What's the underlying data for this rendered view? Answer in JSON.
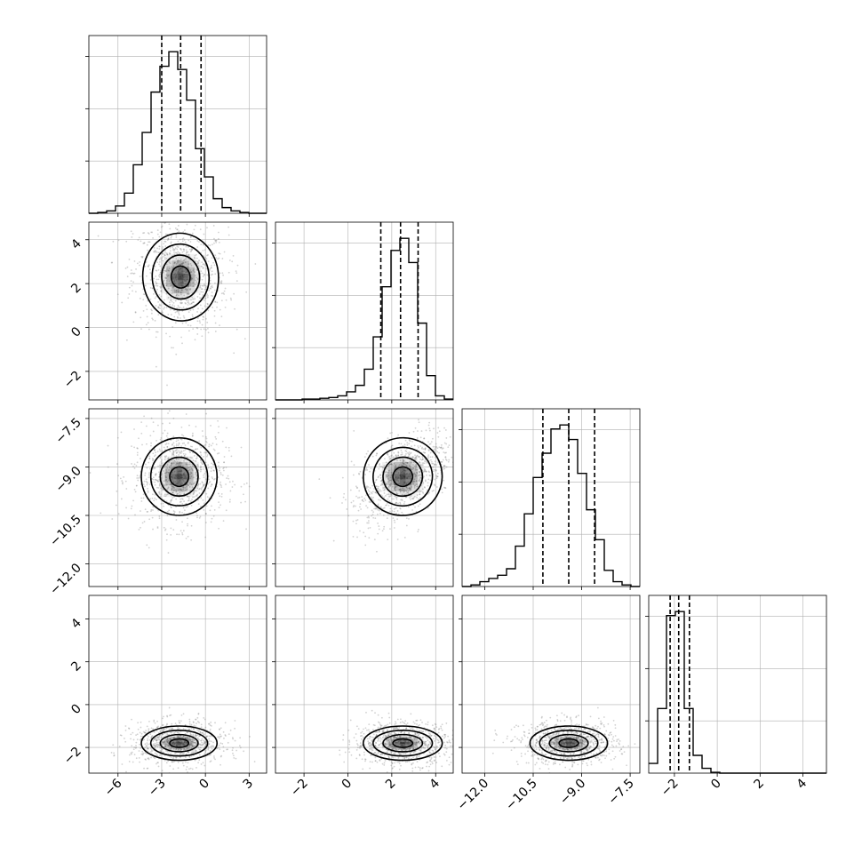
{
  "chart_data": {
    "type": "corner",
    "grid": true,
    "parameters": [
      {
        "ticks": [
          -6,
          -3,
          0,
          3
        ],
        "tick_labels": [
          "−6",
          "−3",
          "0",
          "3"
        ],
        "range": [
          -8.0,
          4.2
        ],
        "quantiles": [
          -3.0,
          -1.7,
          -0.3
        ]
      },
      {
        "ticks": [
          -2,
          0,
          2,
          4
        ],
        "tick_labels": [
          "−2",
          "0",
          "2",
          "4"
        ],
        "range": [
          -3.3,
          4.8
        ],
        "quantiles": [
          1.5,
          2.4,
          3.2
        ]
      },
      {
        "ticks": [
          -12.0,
          -10.5,
          -9.0,
          -7.5
        ],
        "tick_labels": [
          "−12.0",
          "−10.5",
          "−9.0",
          "−7.5"
        ],
        "range": [
          -12.7,
          -7.2
        ],
        "quantiles": [
          -10.2,
          -9.4,
          -8.6
        ]
      },
      {
        "ticks": [
          -2,
          0,
          2,
          4
        ],
        "tick_labels": [
          "−2",
          "0",
          "2",
          "4"
        ],
        "range": [
          -3.2,
          5.1
        ],
        "quantiles": [
          -2.2,
          -1.8,
          -1.3
        ]
      }
    ],
    "histograms": [
      {
        "param": 0,
        "edges": [
          -8.0,
          -7.39,
          -6.78,
          -6.17,
          -5.56,
          -4.95,
          -4.34,
          -3.73,
          -3.12,
          -2.51,
          -1.9,
          -1.29,
          -0.68,
          -0.07,
          0.54,
          1.15,
          1.76,
          2.37,
          2.98,
          3.59,
          4.2
        ],
        "counts": [
          0,
          1,
          3,
          9,
          25,
          60,
          100,
          150,
          182,
          200,
          178,
          140,
          80,
          45,
          18,
          7,
          3,
          1,
          0,
          0
        ]
      },
      {
        "param": 1,
        "edges": [
          -3.3,
          -2.895,
          -2.49,
          -2.085,
          -1.68,
          -1.275,
          -0.87,
          -0.465,
          -0.06,
          0.345,
          0.75,
          1.155,
          1.56,
          1.965,
          2.37,
          2.775,
          3.18,
          3.585,
          3.99,
          4.395,
          4.8
        ],
        "counts": [
          0,
          0,
          0,
          1,
          1,
          2,
          3,
          5,
          10,
          18,
          38,
          78,
          140,
          185,
          200,
          170,
          95,
          30,
          5,
          1
        ]
      },
      {
        "param": 2,
        "edges": [
          -12.7,
          -12.425,
          -12.15,
          -11.875,
          -11.6,
          -11.325,
          -11.05,
          -10.775,
          -10.5,
          -10.225,
          -9.95,
          -9.675,
          -9.4,
          -9.125,
          -8.85,
          -8.575,
          -8.3,
          -8.025,
          -7.75,
          -7.475,
          -7.2
        ],
        "counts": [
          0,
          2,
          6,
          10,
          14,
          22,
          50,
          90,
          135,
          165,
          195,
          200,
          182,
          140,
          95,
          58,
          20,
          6,
          2,
          0
        ]
      },
      {
        "param": 3,
        "edges": [
          -3.2,
          -2.785,
          -2.37,
          -1.955,
          -1.54,
          -1.125,
          -0.71,
          -0.295,
          0.12,
          0.535,
          0.95,
          1.365,
          1.78,
          2.195,
          2.61,
          3.025,
          3.44,
          3.855,
          4.27,
          4.685,
          5.1
        ],
        "counts": [
          12,
          80,
          195,
          200,
          80,
          22,
          6,
          1,
          0,
          0,
          0,
          0,
          0,
          0,
          0,
          0,
          0,
          0,
          0,
          0
        ]
      }
    ],
    "pairs": [
      {
        "x_param": 0,
        "y_param": 1,
        "peak": [
          -1.7,
          2.3
        ],
        "sigma": [
          1.3,
          1.0
        ],
        "rho": -0.1
      },
      {
        "x_param": 0,
        "y_param": 2,
        "peak": [
          -1.8,
          -9.3
        ],
        "sigma": [
          1.3,
          0.6
        ],
        "rho": 0.0
      },
      {
        "x_param": 1,
        "y_param": 2,
        "peak": [
          2.5,
          -9.3
        ],
        "sigma": [
          0.9,
          0.6
        ],
        "rho": 0.55
      },
      {
        "x_param": 0,
        "y_param": 3,
        "peak": [
          -1.8,
          -1.8
        ],
        "sigma": [
          1.3,
          0.4
        ],
        "rho": 0.0
      },
      {
        "x_param": 1,
        "y_param": 3,
        "peak": [
          2.5,
          -1.8
        ],
        "sigma": [
          0.9,
          0.4
        ],
        "rho": 0.0
      },
      {
        "x_param": 2,
        "y_param": 3,
        "peak": [
          -9.4,
          -1.8
        ],
        "sigma": [
          0.6,
          0.4
        ],
        "rho": 0.0
      }
    ],
    "contour_levels_sigma": [
      0.5,
      1.0,
      1.5,
      2.0
    ],
    "colors": {
      "line": "#000000",
      "points": "#7f7f7f",
      "grid": "#b0b0b0",
      "density": "#000000"
    }
  }
}
